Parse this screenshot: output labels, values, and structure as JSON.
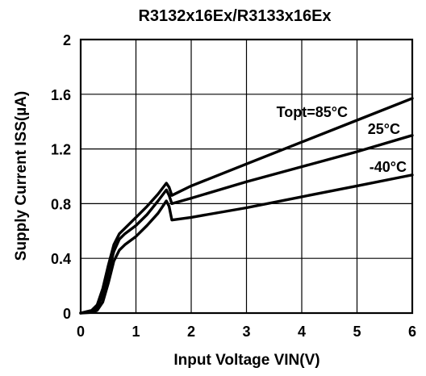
{
  "chart_data": {
    "type": "line",
    "title": "R3132x16Ex/R3133x16Ex",
    "xlabel": "Input Voltage VIN(V)",
    "ylabel": "Supply Current ISS(µA)",
    "xlim": [
      0,
      6
    ],
    "ylim": [
      0,
      2
    ],
    "xticks": [
      "0",
      "1",
      "2",
      "3",
      "4",
      "5",
      "6"
    ],
    "yticks": [
      "0",
      "0.4",
      "0.8",
      "1.2",
      "1.6",
      "2"
    ],
    "grid": true,
    "series": [
      {
        "name": "Topt=85°C",
        "x": [
          0,
          0.2,
          0.3,
          0.4,
          0.5,
          0.6,
          0.7,
          0.8,
          1.0,
          1.2,
          1.4,
          1.55,
          1.6,
          1.65,
          2,
          3,
          4,
          5,
          6
        ],
        "y": [
          0,
          0.02,
          0.06,
          0.18,
          0.35,
          0.5,
          0.58,
          0.62,
          0.7,
          0.78,
          0.87,
          0.95,
          0.92,
          0.86,
          0.93,
          1.09,
          1.25,
          1.41,
          1.57
        ]
      },
      {
        "name": "25°C",
        "x": [
          0,
          0.2,
          0.3,
          0.4,
          0.5,
          0.6,
          0.7,
          0.8,
          1.0,
          1.2,
          1.4,
          1.55,
          1.6,
          1.65,
          2,
          3,
          4,
          5,
          6
        ],
        "y": [
          0,
          0.01,
          0.04,
          0.13,
          0.3,
          0.45,
          0.54,
          0.58,
          0.64,
          0.72,
          0.82,
          0.9,
          0.86,
          0.8,
          0.84,
          0.96,
          1.07,
          1.18,
          1.3
        ]
      },
      {
        "name": "-40°C",
        "x": [
          0,
          0.2,
          0.3,
          0.4,
          0.5,
          0.6,
          0.7,
          0.8,
          1.0,
          1.2,
          1.4,
          1.55,
          1.6,
          1.65,
          2,
          3,
          4,
          5,
          6
        ],
        "y": [
          0,
          0.005,
          0.02,
          0.08,
          0.22,
          0.38,
          0.46,
          0.5,
          0.56,
          0.64,
          0.73,
          0.82,
          0.78,
          0.68,
          0.7,
          0.77,
          0.85,
          0.93,
          1.01
        ]
      }
    ]
  }
}
